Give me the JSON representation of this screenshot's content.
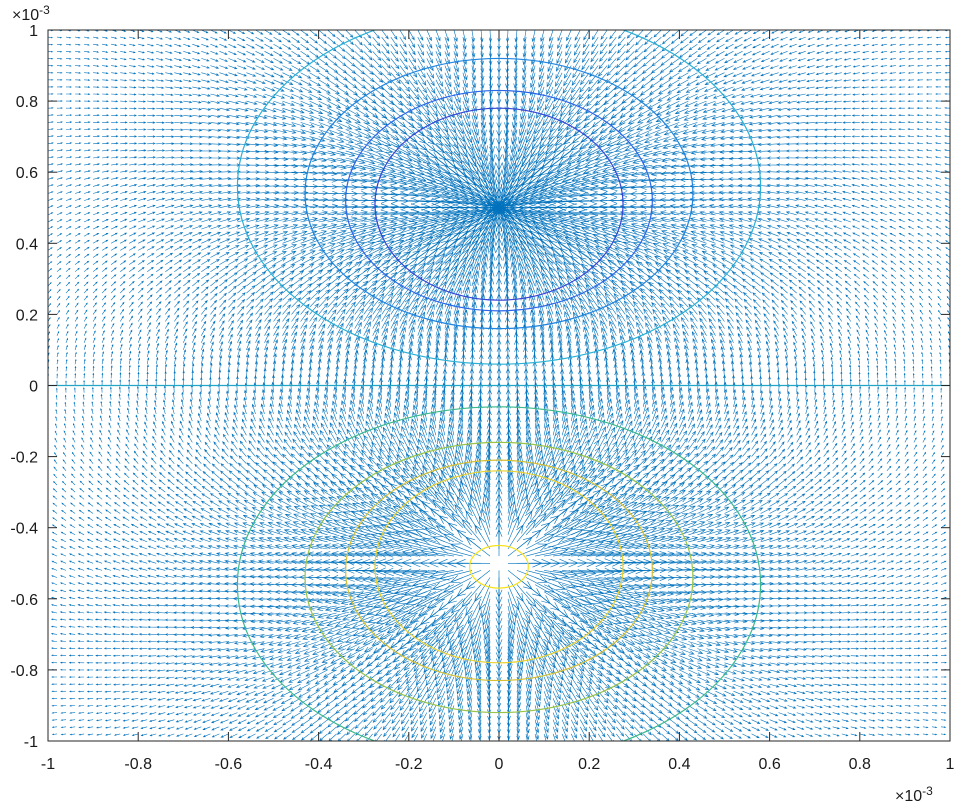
{
  "chart_data": {
    "type": "contour+quiver",
    "title": "",
    "xlabel": "",
    "ylabel": "",
    "xlim": [
      -1,
      1
    ],
    "ylim": [
      -1,
      1
    ],
    "x_exponent": "×10",
    "x_exponent_power": "-3",
    "y_exponent": "×10",
    "y_exponent_power": "-3",
    "xticks": [
      "-1",
      "-0.8",
      "-0.6",
      "-0.4",
      "-0.2",
      "0",
      "0.2",
      "0.4",
      "0.6",
      "0.8",
      "1"
    ],
    "xtick_values": [
      -1,
      -0.8,
      -0.6,
      -0.4,
      -0.2,
      0,
      0.2,
      0.4,
      0.6,
      0.8,
      1
    ],
    "yticks": [
      "-1",
      "-0.8",
      "-0.6",
      "-0.4",
      "-0.2",
      "0",
      "0.2",
      "0.4",
      "0.6",
      "0.8",
      "1"
    ],
    "ytick_values": [
      -1,
      -0.8,
      -0.6,
      -0.4,
      -0.2,
      0,
      0.2,
      0.4,
      0.6,
      0.8,
      1
    ],
    "grid": false,
    "charges": [
      {
        "x": 0,
        "y": 0.5,
        "sign": "negative"
      },
      {
        "x": 0,
        "y": -0.5,
        "sign": "positive"
      }
    ],
    "contours": [
      {
        "cx": 0,
        "cy": 0.56,
        "rx": 0.58,
        "ry": 0.5,
        "color": "#2ab0d5"
      },
      {
        "cx": 0,
        "cy": 0.54,
        "rx": 0.43,
        "ry": 0.38,
        "color": "#2185e0"
      },
      {
        "cx": 0,
        "cy": 0.52,
        "rx": 0.34,
        "ry": 0.31,
        "color": "#2b65e8"
      },
      {
        "cx": 0,
        "cy": 0.51,
        "rx": 0.275,
        "ry": 0.27,
        "color": "#3545d4"
      },
      {
        "cx": 0,
        "cy": 0.0,
        "rx": 1.0,
        "ry": 0.0,
        "color": "#23a5c8"
      },
      {
        "cx": 0,
        "cy": -0.56,
        "rx": 0.58,
        "ry": 0.5,
        "color": "#3cb98b"
      },
      {
        "cx": 0,
        "cy": -0.54,
        "rx": 0.43,
        "ry": 0.38,
        "color": "#99c448"
      },
      {
        "cx": 0,
        "cy": -0.52,
        "rx": 0.34,
        "ry": 0.31,
        "color": "#d6c032"
      },
      {
        "cx": 0,
        "cy": -0.51,
        "rx": 0.275,
        "ry": 0.27,
        "color": "#ead12c"
      },
      {
        "cx": 0,
        "cy": -0.51,
        "rx": 0.065,
        "ry": 0.06,
        "color": "#f7e219"
      }
    ],
    "quiver_color": "#0072bd"
  }
}
